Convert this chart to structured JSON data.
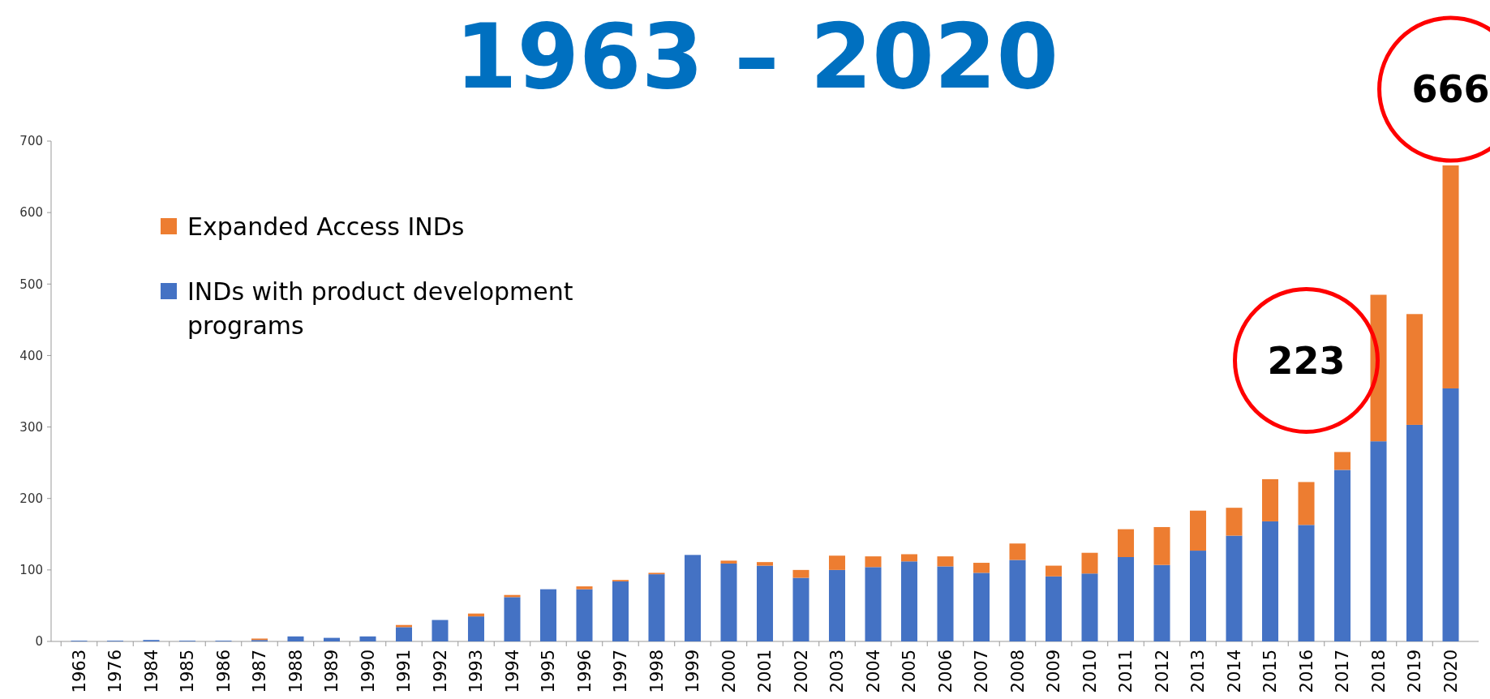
{
  "chart_data": {
    "type": "bar",
    "title": "1963 – 2020",
    "stacked": true,
    "categories": [
      "1963",
      "1976",
      "1984",
      "1985",
      "1986",
      "1987",
      "1988",
      "1989",
      "1990",
      "1991",
      "1992",
      "1993",
      "1994",
      "1995",
      "1996",
      "1997",
      "1998",
      "1999",
      "2000",
      "2001",
      "2002",
      "2003",
      "2004",
      "2005",
      "2006",
      "2007",
      "2008",
      "2009",
      "2010",
      "2011",
      "2012",
      "2013",
      "2014",
      "2015",
      "2016",
      "2017",
      "2018",
      "2019",
      "2020"
    ],
    "series": [
      {
        "name": "INDs with product development programs",
        "color": "#4472c4",
        "values": [
          1,
          1,
          2,
          1,
          1,
          2,
          7,
          5,
          7,
          20,
          30,
          35,
          62,
          73,
          73,
          84,
          94,
          121,
          109,
          106,
          89,
          100,
          104,
          112,
          105,
          96,
          114,
          91,
          95,
          118,
          107,
          127,
          148,
          168,
          163,
          240,
          280,
          303,
          354
        ]
      },
      {
        "name": "Expanded Access INDs",
        "color": "#ed7d31",
        "values": [
          0,
          0,
          0,
          0,
          0,
          2,
          0,
          0,
          0,
          3,
          0,
          4,
          3,
          0,
          4,
          2,
          2,
          0,
          4,
          5,
          11,
          20,
          15,
          10,
          14,
          14,
          23,
          15,
          29,
          39,
          53,
          56,
          39,
          59,
          60,
          25,
          205,
          155,
          312
        ]
      }
    ],
    "ylim": [
      0,
      700
    ],
    "yticks": [
      0,
      100,
      200,
      300,
      400,
      500,
      600,
      700
    ],
    "grid": false,
    "legend": "top left",
    "annotations": [
      {
        "text": "223",
        "x": "2016",
        "y": 223
      },
      {
        "text": "666",
        "x": "2020",
        "y": 666
      }
    ]
  }
}
